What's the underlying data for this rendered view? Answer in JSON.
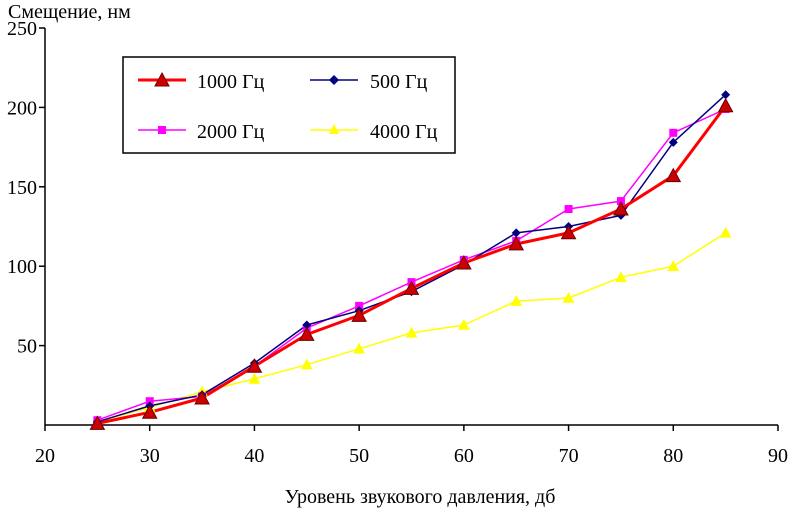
{
  "chart_data": {
    "type": "line",
    "title": "",
    "ylabel": "Смещение, нм",
    "xlabel": "Уровень звукового давления, дб",
    "xlim": [
      20,
      90
    ],
    "ylim": [
      0,
      250
    ],
    "xticks": [
      20,
      30,
      40,
      50,
      60,
      70,
      80,
      90
    ],
    "yticks": [
      50,
      100,
      150,
      200,
      250
    ],
    "grid": false,
    "legend_position": "top-left",
    "series": [
      {
        "name": "1000 Гц",
        "color": "#ff0000",
        "marker": "triangle",
        "marker_fill": "#cc0000",
        "x": [
          25,
          30,
          35,
          40,
          45,
          50,
          55,
          60,
          65,
          70,
          75,
          80,
          85
        ],
        "y": [
          1,
          8,
          17,
          37,
          57,
          69,
          86,
          102,
          114,
          121,
          136,
          157,
          201
        ]
      },
      {
        "name": "500 Гц",
        "color": "#000080",
        "marker": "diamond",
        "marker_fill": "#000080",
        "x": [
          25,
          30,
          35,
          40,
          45,
          50,
          55,
          60,
          65,
          70,
          75,
          80,
          85
        ],
        "y": [
          2,
          12,
          19,
          39,
          63,
          72,
          84,
          101,
          121,
          125,
          132,
          178,
          208
        ]
      },
      {
        "name": "2000 Гц",
        "color": "#ff00ff",
        "marker": "square",
        "marker_fill": "#ff00ff",
        "x": [
          25,
          30,
          35,
          40,
          45,
          50,
          55,
          60,
          65,
          70,
          75,
          80,
          85
        ],
        "y": [
          3,
          15,
          18,
          37,
          61,
          75,
          90,
          104,
          116,
          136,
          141,
          184,
          199
        ]
      },
      {
        "name": "4000 Гц",
        "color": "#ffff00",
        "marker": "triangle",
        "marker_fill": "#ffff00",
        "x": [
          25,
          30,
          35,
          40,
          45,
          50,
          55,
          60,
          65,
          70,
          75,
          80,
          85
        ],
        "y": [
          2,
          11,
          21,
          29,
          38,
          48,
          58,
          63,
          78,
          80,
          93,
          100,
          121
        ]
      }
    ]
  }
}
